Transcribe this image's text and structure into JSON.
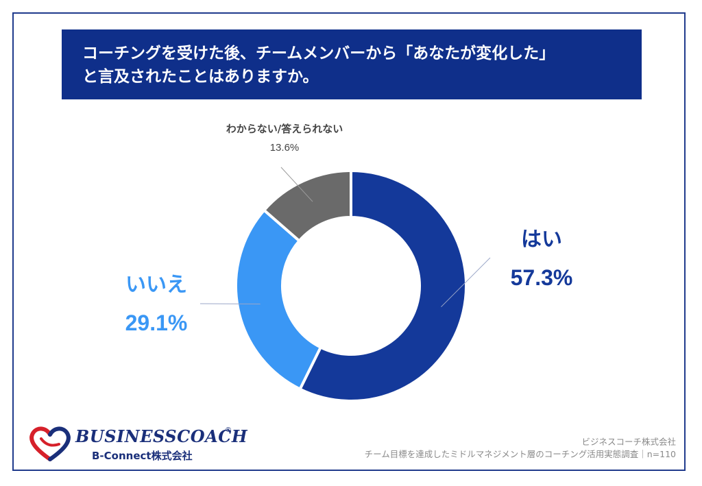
{
  "header": {
    "title_line1": "コーチングを受けた後、チームメンバーから「あなたが変化した」",
    "title_line2": "と言及されたことはありますか。"
  },
  "chart_data": {
    "type": "pie",
    "variant": "donut",
    "title": "コーチングを受けた後、チームメンバーから「あなたが変化した」と言及されたことはありますか。",
    "categories": [
      "はい",
      "いいえ",
      "わからない/答えられない"
    ],
    "values": [
      57.3,
      29.1,
      13.6
    ],
    "value_labels": [
      "57.3%",
      "29.1%",
      "13.6%"
    ],
    "colors": [
      "#14399a",
      "#3a97f5",
      "#6a6a6a"
    ],
    "start_angle": "12 o'clock",
    "direction": "clockwise",
    "legend": "none"
  },
  "branding": {
    "logo_name": "BUSINESSCOACH",
    "logo_registered": "®",
    "logo_sub": "B-Connect株式会社"
  },
  "footer": {
    "source_company": "ビジネスコーチ株式会社",
    "survey_note": "チーム目標を達成したミドルマネジメント層のコーチング活用実態調査｜n=110"
  }
}
